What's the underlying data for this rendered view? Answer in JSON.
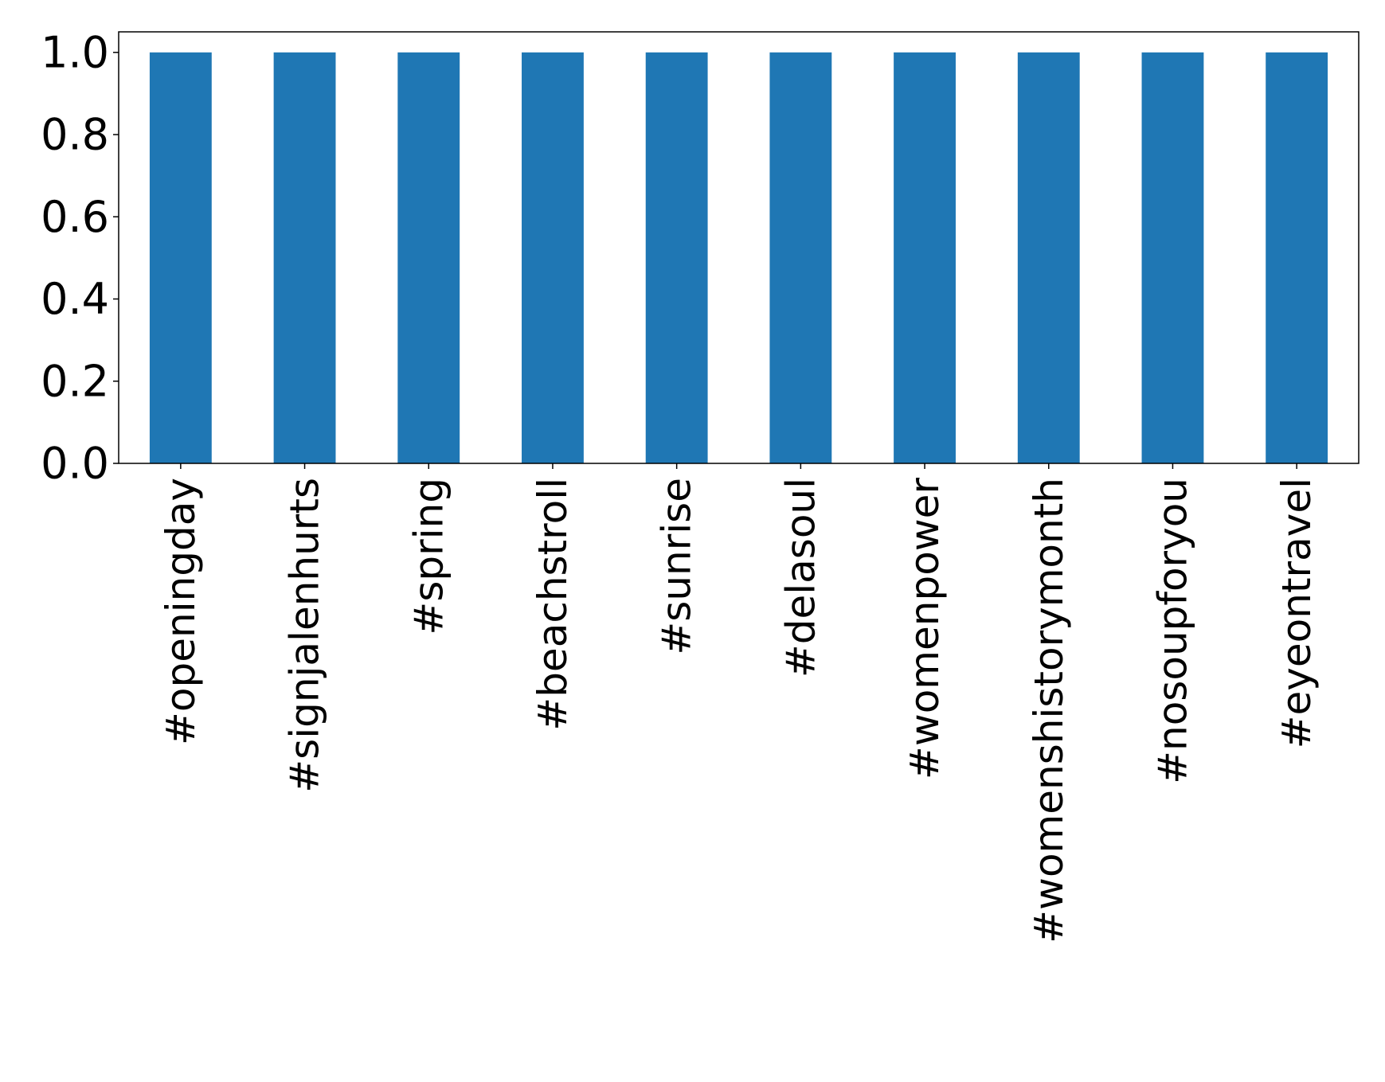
{
  "chart_data": {
    "type": "bar",
    "categories": [
      "#openingday",
      "#signjalenhurts",
      "#spring",
      "#beachstroll",
      "#sunrise",
      "#delasoul",
      "#womenpower",
      "#womenshistorymonth",
      "#nosoupforyou",
      "#eyeontravel"
    ],
    "values": [
      1.0,
      1.0,
      1.0,
      1.0,
      1.0,
      1.0,
      1.0,
      1.0,
      1.0,
      1.0
    ],
    "ylim": [
      0,
      1.05
    ],
    "yticks": [
      "0.0",
      "0.2",
      "0.4",
      "0.6",
      "0.8",
      "1.0"
    ],
    "title": "",
    "xlabel": "",
    "ylabel": "",
    "grid": false,
    "bar_color": "#1f77b4"
  }
}
